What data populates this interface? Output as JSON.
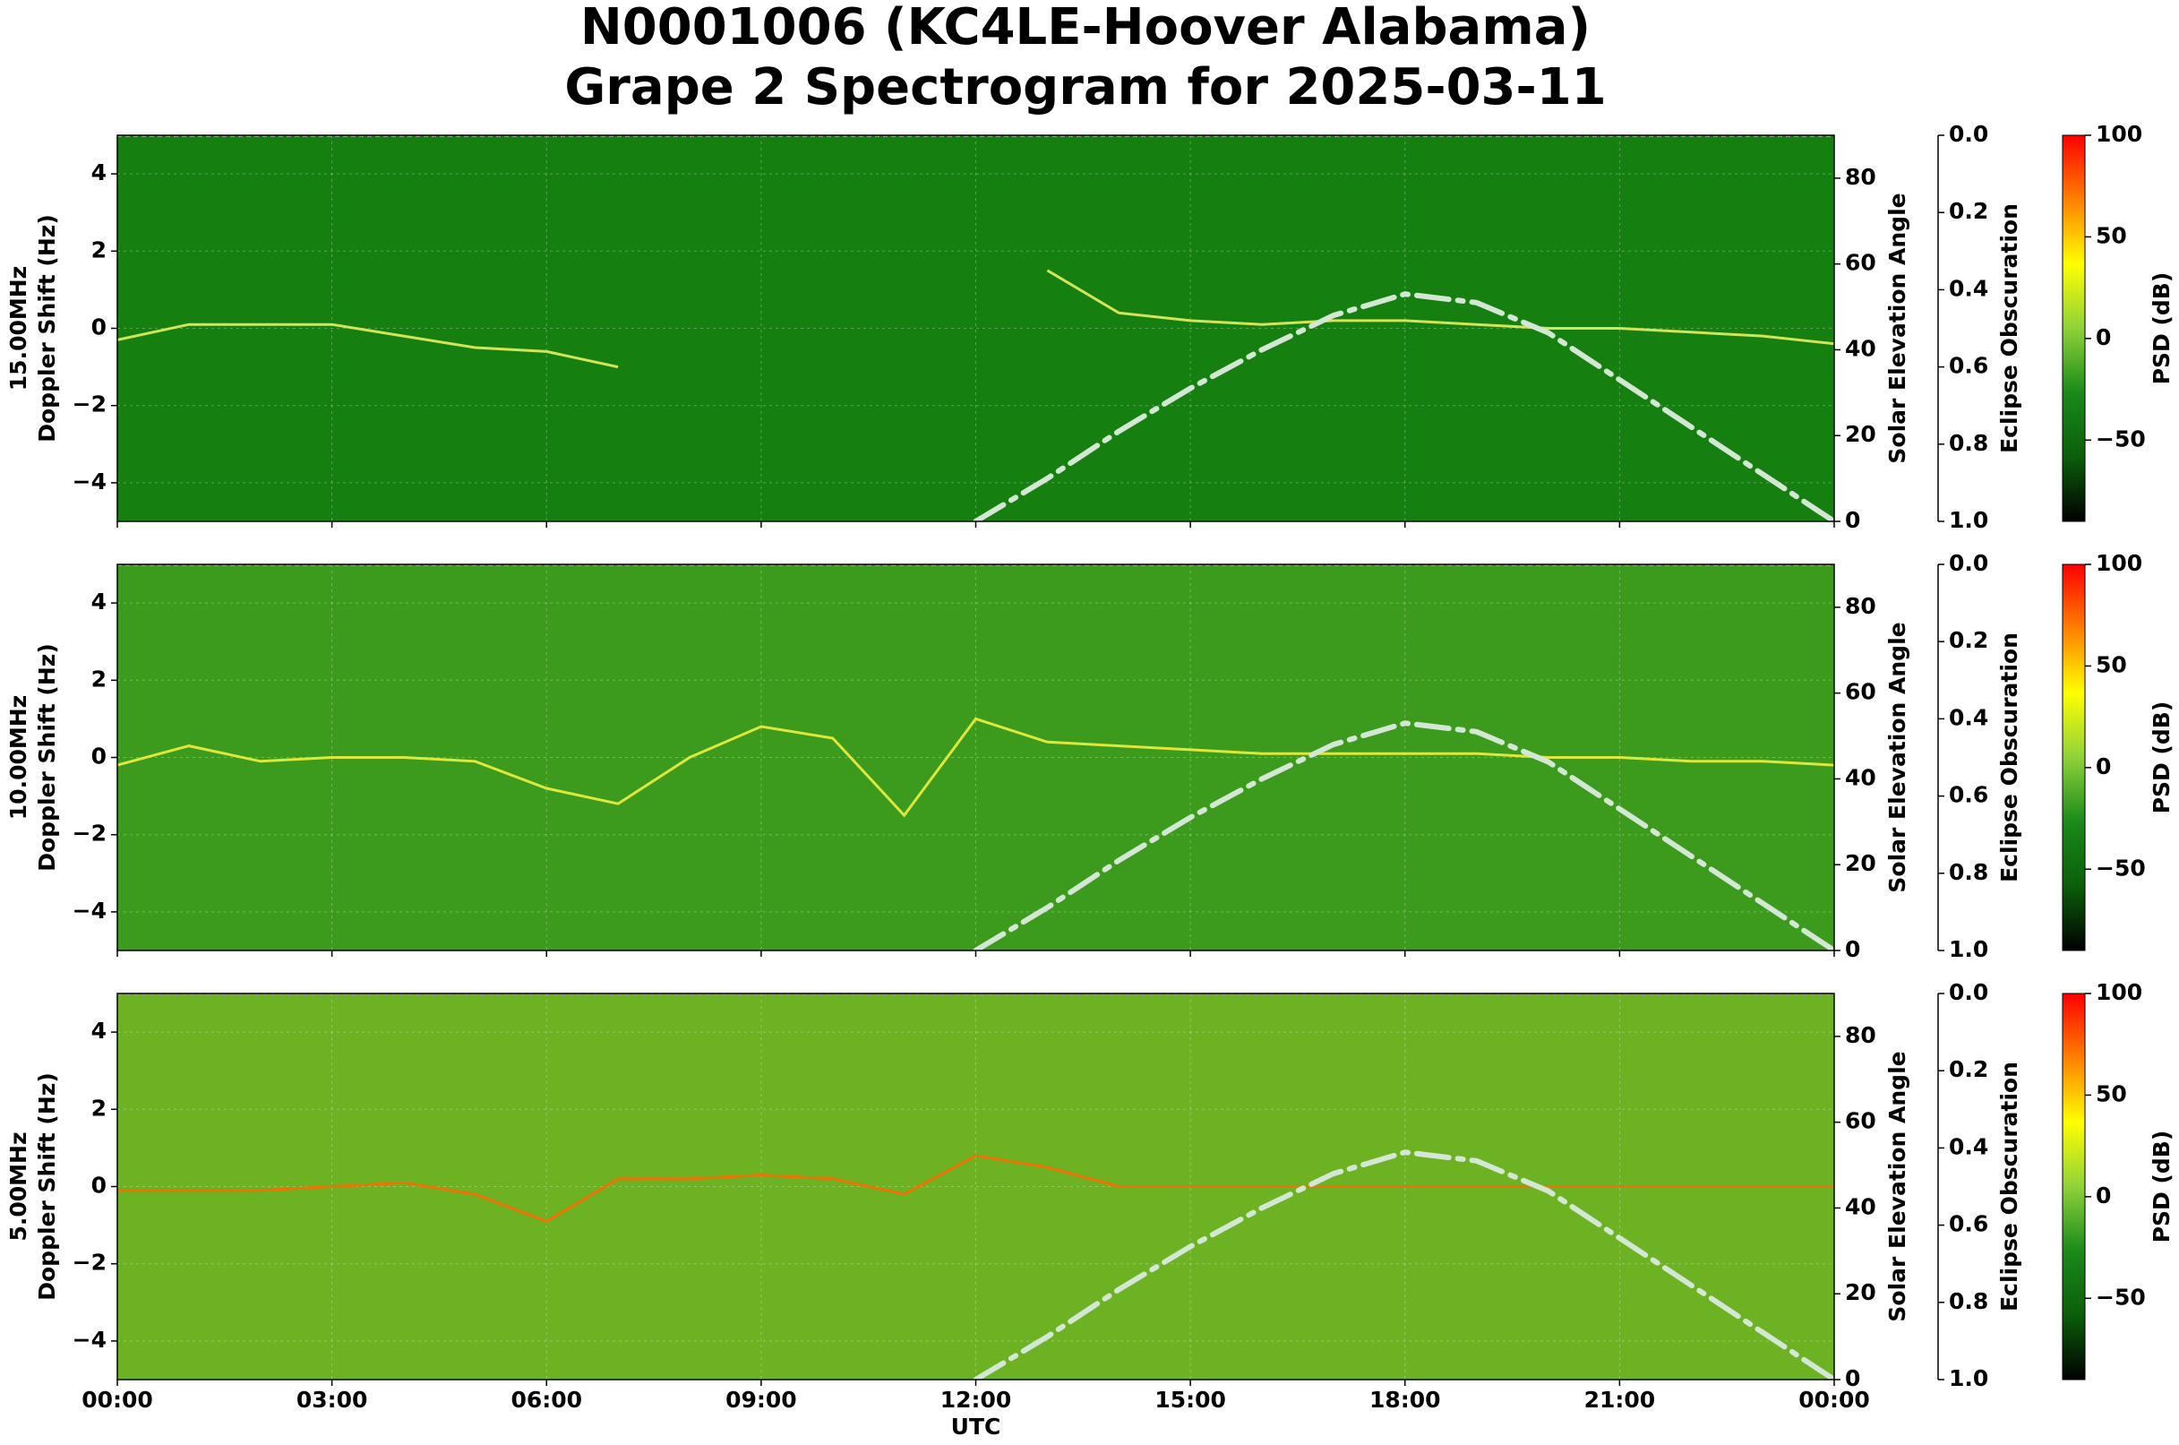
{
  "title": "N0001006 (KC4LE-Hoover Alabama)",
  "subtitle": "Grape 2 Spectrogram for 2025-03-11",
  "chart_data": [
    {
      "type": "spectrogram",
      "ylabel": [
        "15.00MHz",
        "Doppler Shift (Hz)"
      ],
      "background": "#157f10",
      "xlim": [
        0,
        24
      ],
      "xticks": [
        0,
        3,
        6,
        9,
        12,
        15,
        18,
        21,
        24
      ],
      "ylim": [
        -5,
        5
      ],
      "yticks": [
        {
          "value": -4,
          "label": "−4"
        },
        {
          "value": -2,
          "label": "−2"
        },
        0,
        2,
        4
      ],
      "y2label": "Solar Elevation Angle",
      "y2lim": [
        0,
        90
      ],
      "y2ticks": [
        0,
        20,
        40,
        60,
        80
      ],
      "y3label": "Eclipse Obscuration",
      "y3lim": [
        1,
        0
      ],
      "y3ticks": [
        {
          "value": 0,
          "label": "0.0"
        },
        {
          "value": 0.2,
          "label": "0.2"
        },
        {
          "value": 0.4,
          "label": "0.4"
        },
        {
          "value": 0.6,
          "label": "0.6"
        },
        {
          "value": 0.8,
          "label": "0.8"
        },
        {
          "value": 1,
          "label": "1.0"
        }
      ],
      "colorbar": {
        "label": "PSD (dB)",
        "clim": [
          -90,
          100
        ],
        "ticks": [
          {
            "value": -50,
            "label": "−50"
          },
          0,
          50,
          100
        ],
        "colormap": [
          "#000000",
          "#0b5e0b",
          "#1a8a1a",
          "#8fd23a",
          "#ffff00",
          "#ff8000",
          "#ff0000"
        ]
      },
      "series": [
        {
          "color": "#e8f060",
          "x": [
            0,
            1,
            2,
            3,
            4,
            5,
            6,
            7,
            8,
            9,
            10,
            11,
            12,
            13,
            14,
            15,
            16,
            17,
            18,
            19,
            20,
            21,
            22,
            23,
            24
          ],
          "values": [
            -0.3,
            0.1,
            0.1,
            0.1,
            -0.2,
            -0.5,
            -0.6,
            -1.0,
            null,
            null,
            null,
            null,
            null,
            1.5,
            0.4,
            0.2,
            0.1,
            0.2,
            0.2,
            0.1,
            0.0,
            0.0,
            -0.1,
            -0.2,
            -0.4
          ]
        },
        {
          "axis": "y2",
          "color": "#d4e6d4",
          "x": [
            12,
            13,
            14,
            15,
            16,
            17,
            18,
            19,
            20,
            21,
            22,
            23,
            24
          ],
          "values": [
            0,
            10,
            21,
            31,
            40,
            48,
            53,
            51,
            44,
            33,
            22,
            11,
            0
          ]
        }
      ]
    },
    {
      "type": "spectrogram",
      "ylabel": [
        "10.00MHz",
        "Doppler Shift (Hz)"
      ],
      "background": "#3c9a1c",
      "xlim": [
        0,
        24
      ],
      "xticks": [
        0,
        3,
        6,
        9,
        12,
        15,
        18,
        21,
        24
      ],
      "ylim": [
        -5,
        5
      ],
      "yticks": [
        {
          "value": -4,
          "label": "−4"
        },
        {
          "value": -2,
          "label": "−2"
        },
        0,
        2,
        4
      ],
      "y2label": "Solar Elevation Angle",
      "y2lim": [
        0,
        90
      ],
      "y2ticks": [
        0,
        20,
        40,
        60,
        80
      ],
      "y3label": "Eclipse Obscuration",
      "y3lim": [
        1,
        0
      ],
      "y3ticks": [
        {
          "value": 0,
          "label": "0.0"
        },
        {
          "value": 0.2,
          "label": "0.2"
        },
        {
          "value": 0.4,
          "label": "0.4"
        },
        {
          "value": 0.6,
          "label": "0.6"
        },
        {
          "value": 0.8,
          "label": "0.8"
        },
        {
          "value": 1,
          "label": "1.0"
        }
      ],
      "colorbar": {
        "label": "PSD (dB)",
        "clim": [
          -90,
          100
        ],
        "ticks": [
          {
            "value": -50,
            "label": "−50"
          },
          0,
          50,
          100
        ],
        "colormap": [
          "#000000",
          "#0b5e0b",
          "#1a8a1a",
          "#8fd23a",
          "#ffff00",
          "#ff8000",
          "#ff0000"
        ]
      },
      "series": [
        {
          "color": "#f0f040",
          "x": [
            0,
            1,
            2,
            3,
            4,
            5,
            6,
            7,
            8,
            9,
            10,
            11,
            12,
            13,
            14,
            15,
            16,
            17,
            18,
            19,
            20,
            21,
            22,
            23,
            24
          ],
          "values": [
            -0.2,
            0.3,
            -0.1,
            0,
            0,
            -0.1,
            -0.8,
            -1.2,
            0,
            0.8,
            0.5,
            -1.5,
            1.0,
            0.4,
            0.3,
            0.2,
            0.1,
            0.1,
            0.1,
            0.1,
            0,
            0,
            -0.1,
            -0.1,
            -0.2
          ]
        },
        {
          "axis": "y2",
          "color": "#d4e6d4",
          "x": [
            12,
            13,
            14,
            15,
            16,
            17,
            18,
            19,
            20,
            21,
            22,
            23,
            24
          ],
          "values": [
            0,
            10,
            21,
            31,
            40,
            48,
            53,
            51,
            44,
            33,
            22,
            11,
            0
          ]
        }
      ]
    },
    {
      "type": "spectrogram",
      "ylabel": [
        "5.00MHz",
        "Doppler Shift (Hz)"
      ],
      "background": "#6cb223",
      "xlabel": "UTC",
      "xlim": [
        0,
        24
      ],
      "xticks": [
        {
          "value": 0,
          "label": "00:00"
        },
        {
          "value": 3,
          "label": "03:00"
        },
        {
          "value": 6,
          "label": "06:00"
        },
        {
          "value": 9,
          "label": "09:00"
        },
        {
          "value": 12,
          "label": "12:00"
        },
        {
          "value": 15,
          "label": "15:00"
        },
        {
          "value": 18,
          "label": "18:00"
        },
        {
          "value": 21,
          "label": "21:00"
        },
        {
          "value": 24,
          "label": "00:00"
        }
      ],
      "ylim": [
        -5,
        5
      ],
      "yticks": [
        {
          "value": -4,
          "label": "−4"
        },
        {
          "value": -2,
          "label": "−2"
        },
        0,
        2,
        4
      ],
      "y2label": "Solar Elevation Angle",
      "y2lim": [
        0,
        90
      ],
      "y2ticks": [
        0,
        20,
        40,
        60,
        80
      ],
      "y3label": "Eclipse Obscuration",
      "y3lim": [
        1,
        0
      ],
      "y3ticks": [
        {
          "value": 0,
          "label": "0.0"
        },
        {
          "value": 0.2,
          "label": "0.2"
        },
        {
          "value": 0.4,
          "label": "0.4"
        },
        {
          "value": 0.6,
          "label": "0.6"
        },
        {
          "value": 0.8,
          "label": "0.8"
        },
        {
          "value": 1,
          "label": "1.0"
        }
      ],
      "colorbar": {
        "label": "PSD (dB)",
        "clim": [
          -90,
          100
        ],
        "ticks": [
          {
            "value": -50,
            "label": "−50"
          },
          0,
          50,
          100
        ],
        "colormap": [
          "#000000",
          "#0b5e0b",
          "#1a8a1a",
          "#8fd23a",
          "#ffff00",
          "#ff8000",
          "#ff0000"
        ]
      },
      "series": [
        {
          "color": "#ff6a00",
          "x": [
            0,
            1,
            2,
            3,
            4,
            5,
            6,
            7,
            8,
            9,
            10,
            11,
            12,
            13,
            14,
            15,
            16,
            17,
            18,
            19,
            20,
            21,
            22,
            23,
            24
          ],
          "values": [
            -0.1,
            -0.1,
            -0.1,
            0,
            0.1,
            -0.2,
            -0.9,
            0.2,
            0.2,
            0.3,
            0.2,
            -0.2,
            0.8,
            0.5,
            0,
            0,
            0,
            0,
            0,
            0,
            0,
            0,
            0,
            0,
            0
          ]
        },
        {
          "axis": "y2",
          "color": "#d4e6d4",
          "x": [
            12,
            13,
            14,
            15,
            16,
            17,
            18,
            19,
            20,
            21,
            22,
            23,
            24
          ],
          "values": [
            0,
            10,
            21,
            31,
            40,
            48,
            53,
            51,
            44,
            33,
            22,
            11,
            0
          ]
        }
      ]
    }
  ]
}
